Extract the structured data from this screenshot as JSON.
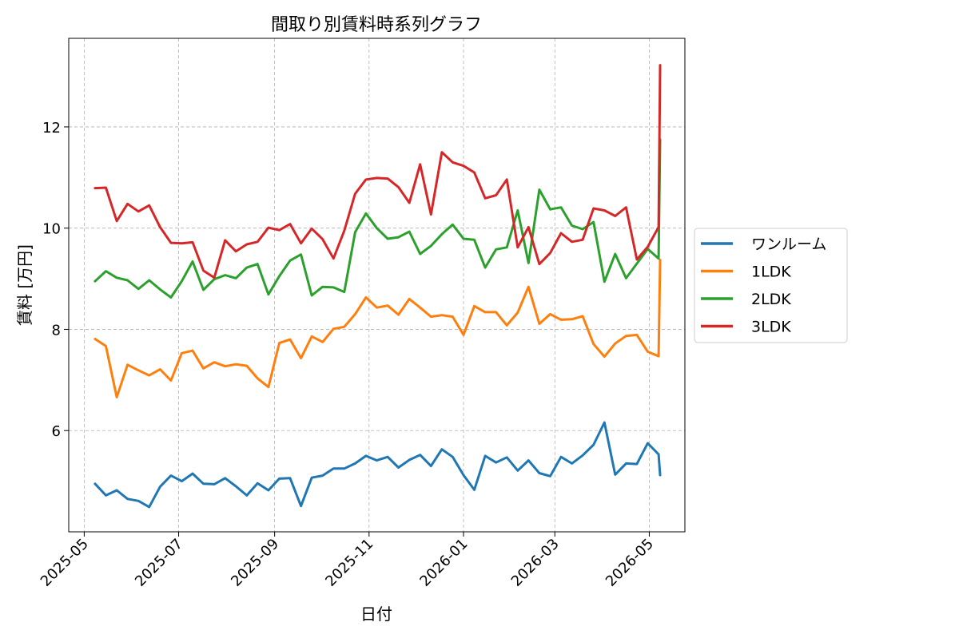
{
  "chart_data": {
    "type": "line",
    "title": "間取り別賃料時系列グラフ",
    "xlabel": "日付",
    "ylabel": "賃料 [万円]",
    "xlim": [
      "2025-04-21",
      "2026-05-24"
    ],
    "ylim": [
      4.0,
      13.75
    ],
    "x_ticks": [
      "2025-05",
      "2025-07",
      "2025-09",
      "2025-11",
      "2026-01",
      "2026-03",
      "2026-05"
    ],
    "x_tick_dates": [
      "2025-05-01",
      "2025-07-01",
      "2025-09-01",
      "2025-11-01",
      "2026-01-01",
      "2026-03-01",
      "2026-05-01"
    ],
    "y_ticks": [
      6,
      8,
      10,
      12
    ],
    "grid": true,
    "legend_position": "right, outside plot",
    "x": [
      "2025-05-08",
      "2025-05-15",
      "2025-05-22",
      "2025-05-29",
      "2025-06-05",
      "2025-06-12",
      "2025-06-19",
      "2025-06-26",
      "2025-07-03",
      "2025-07-10",
      "2025-07-17",
      "2025-07-24",
      "2025-07-31",
      "2025-08-07",
      "2025-08-14",
      "2025-08-21",
      "2025-08-28",
      "2025-09-04",
      "2025-09-11",
      "2025-09-18",
      "2025-09-25",
      "2025-10-02",
      "2025-10-09",
      "2025-10-16",
      "2025-10-23",
      "2025-10-30",
      "2025-11-06",
      "2025-11-13",
      "2025-11-20",
      "2025-11-27",
      "2025-12-04",
      "2025-12-11",
      "2025-12-18",
      "2025-12-25",
      "2026-01-01",
      "2026-01-08",
      "2026-01-15",
      "2026-01-22",
      "2026-01-29",
      "2026-02-05",
      "2026-02-12",
      "2026-02-19",
      "2026-02-26",
      "2026-03-05",
      "2026-03-12",
      "2026-03-19",
      "2026-03-26",
      "2026-04-02",
      "2026-04-09",
      "2026-04-16",
      "2026-04-23",
      "2026-04-30",
      "2026-05-07",
      "2026-05-08"
    ],
    "series": [
      {
        "name": "ワンルーム",
        "color": "#1f77b4",
        "values": [
          4.95,
          4.72,
          4.82,
          4.65,
          4.61,
          4.49,
          4.89,
          5.11,
          5.0,
          5.15,
          4.95,
          4.94,
          5.06,
          4.9,
          4.72,
          4.96,
          4.82,
          5.05,
          5.06,
          4.51,
          5.07,
          5.11,
          5.25,
          5.25,
          5.35,
          5.5,
          5.41,
          5.48,
          5.27,
          5.42,
          5.52,
          5.3,
          5.63,
          5.48,
          5.12,
          4.83,
          5.5,
          5.37,
          5.47,
          5.21,
          5.41,
          5.16,
          5.1,
          5.48,
          5.35,
          5.51,
          5.72,
          6.16,
          5.13,
          5.35,
          5.34,
          5.75,
          5.53,
          5.12
        ]
      },
      {
        "name": "1LDK",
        "color": "#ff7f0e",
        "values": [
          7.81,
          7.67,
          6.66,
          7.3,
          7.19,
          7.09,
          7.21,
          6.99,
          7.53,
          7.58,
          7.23,
          7.35,
          7.27,
          7.31,
          7.28,
          7.03,
          6.86,
          7.73,
          7.8,
          7.43,
          7.86,
          7.75,
          8.01,
          8.05,
          8.3,
          8.63,
          8.43,
          8.47,
          8.29,
          8.6,
          8.43,
          8.25,
          8.28,
          8.25,
          7.89,
          8.46,
          8.34,
          8.34,
          8.08,
          8.33,
          8.84,
          8.11,
          8.3,
          8.19,
          8.2,
          8.26,
          7.71,
          7.46,
          7.72,
          7.87,
          7.89,
          7.56,
          7.47,
          9.37
        ]
      },
      {
        "name": "2LDK",
        "color": "#2ca02c",
        "values": [
          8.95,
          9.15,
          9.02,
          8.97,
          8.8,
          8.97,
          8.79,
          8.63,
          8.95,
          9.34,
          8.78,
          8.99,
          9.07,
          9.01,
          9.22,
          9.29,
          8.69,
          9.05,
          9.36,
          9.48,
          8.67,
          8.84,
          8.83,
          8.74,
          9.92,
          10.29,
          10.0,
          9.79,
          9.82,
          9.93,
          9.49,
          9.65,
          9.88,
          10.07,
          9.79,
          9.77,
          9.22,
          9.58,
          9.62,
          10.35,
          9.31,
          10.76,
          10.37,
          10.41,
          10.05,
          9.98,
          10.12,
          8.94,
          9.49,
          9.01,
          9.3,
          9.59,
          9.4,
          11.75
        ]
      },
      {
        "name": "3LDK",
        "color": "#d62728",
        "values": [
          10.79,
          10.8,
          10.14,
          10.48,
          10.33,
          10.45,
          10.02,
          9.71,
          9.7,
          9.72,
          9.16,
          9.02,
          9.76,
          9.54,
          9.68,
          9.73,
          10.01,
          9.96,
          10.08,
          9.7,
          9.99,
          9.78,
          9.4,
          9.95,
          10.68,
          10.96,
          10.99,
          10.98,
          10.81,
          10.5,
          11.26,
          10.27,
          11.5,
          11.3,
          11.23,
          11.1,
          10.59,
          10.65,
          10.96,
          9.62,
          10.02,
          9.29,
          9.51,
          9.9,
          9.73,
          9.77,
          10.39,
          10.35,
          10.24,
          10.41,
          9.38,
          9.63,
          10.02,
          13.22
        ]
      }
    ]
  }
}
